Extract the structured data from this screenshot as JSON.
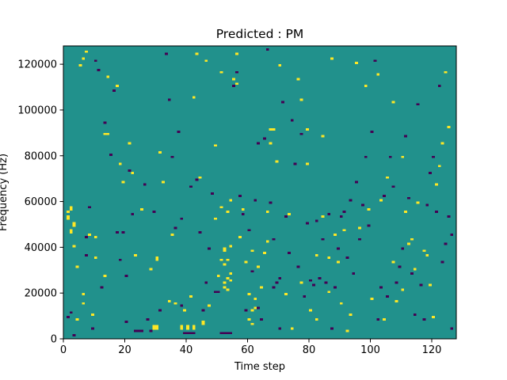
{
  "chart_data": {
    "type": "heatmap",
    "title": "Predicted : PM",
    "xlabel": "Time step",
    "ylabel": "Frequency (Hz)",
    "xlim": [
      0,
      128
    ],
    "ylim": [
      0,
      128000
    ],
    "x_ticks": [
      0,
      20,
      40,
      60,
      80,
      100,
      120
    ],
    "x_tick_labels": [
      "0",
      "20",
      "40",
      "60",
      "80",
      "100",
      "120"
    ],
    "y_ticks": [
      0,
      20000,
      40000,
      60000,
      80000,
      100000,
      120000
    ],
    "y_tick_labels": [
      "0",
      "20000",
      "40000",
      "60000",
      "80000",
      "100000",
      "120000"
    ],
    "grid": false,
    "legend": "none",
    "n_time_steps": 128,
    "n_freq_bins": 128,
    "colormap": "viridis",
    "background_value": 0,
    "value_range": [
      -1,
      1
    ],
    "colors": {
      "low": "#440154",
      "mid": "#21918c",
      "high": "#fde725"
    },
    "high_cells": [
      [
        1,
        53
      ],
      [
        1,
        52
      ],
      [
        1,
        55
      ],
      [
        2,
        57
      ],
      [
        2,
        56
      ],
      [
        2,
        46
      ],
      [
        2,
        47
      ],
      [
        3,
        50
      ],
      [
        3,
        49
      ],
      [
        3,
        40
      ],
      [
        4,
        31
      ],
      [
        4,
        8
      ],
      [
        5,
        119
      ],
      [
        6,
        122
      ],
      [
        6,
        19
      ],
      [
        6,
        15
      ],
      [
        7,
        125
      ],
      [
        8,
        45
      ],
      [
        9,
        10
      ],
      [
        10,
        44
      ],
      [
        10,
        35
      ],
      [
        13,
        89
      ],
      [
        13,
        27
      ],
      [
        14,
        114
      ],
      [
        14,
        89
      ],
      [
        17,
        110
      ],
      [
        18,
        76
      ],
      [
        19,
        68
      ],
      [
        21,
        85
      ],
      [
        22,
        72
      ],
      [
        23,
        36
      ],
      [
        25,
        56
      ],
      [
        28,
        30
      ],
      [
        29,
        5
      ],
      [
        29,
        4
      ],
      [
        30,
        5
      ],
      [
        30,
        4
      ],
      [
        30,
        34
      ],
      [
        30,
        35
      ],
      [
        31,
        81
      ],
      [
        32,
        68
      ],
      [
        34,
        16
      ],
      [
        35,
        45
      ],
      [
        36,
        15
      ],
      [
        38,
        5
      ],
      [
        38,
        4
      ],
      [
        39,
        12
      ],
      [
        40,
        5
      ],
      [
        40,
        4
      ],
      [
        41,
        18
      ],
      [
        42,
        5
      ],
      [
        42,
        4
      ],
      [
        42,
        105
      ],
      [
        43,
        124
      ],
      [
        44,
        70
      ],
      [
        45,
        6
      ],
      [
        45,
        7
      ],
      [
        46,
        121
      ],
      [
        47,
        14
      ],
      [
        49,
        84
      ],
      [
        49,
        52
      ],
      [
        50,
        27
      ],
      [
        51,
        34
      ],
      [
        51,
        57
      ],
      [
        51,
        116
      ],
      [
        52,
        38
      ],
      [
        52,
        39
      ],
      [
        52,
        32
      ],
      [
        52,
        24
      ],
      [
        52,
        22
      ],
      [
        53,
        55
      ],
      [
        53,
        34
      ],
      [
        53,
        26
      ],
      [
        53,
        21
      ],
      [
        54,
        60
      ],
      [
        54,
        40
      ],
      [
        54,
        28
      ],
      [
        54,
        25
      ],
      [
        55,
        113
      ],
      [
        56,
        111
      ],
      [
        56,
        124
      ],
      [
        57,
        44
      ],
      [
        58,
        56
      ],
      [
        59,
        33
      ],
      [
        60,
        19
      ],
      [
        60,
        8
      ],
      [
        61,
        38
      ],
      [
        61,
        6
      ],
      [
        61,
        12
      ],
      [
        62,
        17
      ],
      [
        62,
        13
      ],
      [
        63,
        31
      ],
      [
        64,
        22
      ],
      [
        65,
        37
      ],
      [
        66,
        42
      ],
      [
        66,
        55
      ],
      [
        67,
        85
      ],
      [
        67,
        91
      ],
      [
        68,
        91
      ],
      [
        69,
        77
      ],
      [
        70,
        119
      ],
      [
        72,
        19
      ],
      [
        73,
        54
      ],
      [
        74,
        4
      ],
      [
        76,
        113
      ],
      [
        77,
        24
      ],
      [
        77,
        104
      ],
      [
        79,
        76
      ],
      [
        79,
        91
      ],
      [
        80,
        12
      ],
      [
        82,
        8
      ],
      [
        82,
        36
      ],
      [
        84,
        88
      ],
      [
        84,
        53
      ],
      [
        86,
        35
      ],
      [
        86,
        20
      ],
      [
        87,
        122
      ],
      [
        88,
        45
      ],
      [
        89,
        33
      ],
      [
        90,
        15
      ],
      [
        91,
        47
      ],
      [
        92,
        3
      ],
      [
        93,
        10
      ],
      [
        95,
        120
      ],
      [
        96,
        48
      ],
      [
        98,
        110
      ],
      [
        99,
        56
      ],
      [
        100,
        17
      ],
      [
        102,
        115
      ],
      [
        103,
        60
      ],
      [
        104,
        8
      ],
      [
        105,
        70
      ],
      [
        107,
        103
      ],
      [
        107,
        33
      ],
      [
        108,
        16
      ],
      [
        110,
        79
      ],
      [
        110,
        21
      ],
      [
        111,
        55
      ],
      [
        112,
        41
      ],
      [
        113,
        43
      ],
      [
        114,
        30
      ],
      [
        115,
        59
      ],
      [
        117,
        38
      ],
      [
        118,
        36
      ],
      [
        119,
        23
      ],
      [
        120,
        9
      ],
      [
        121,
        67
      ],
      [
        122,
        75
      ],
      [
        123,
        85
      ],
      [
        124,
        116
      ],
      [
        125,
        92
      ]
    ],
    "low_cells": [
      [
        1,
        9
      ],
      [
        2,
        11
      ],
      [
        3,
        1
      ],
      [
        7,
        44
      ],
      [
        7,
        36
      ],
      [
        8,
        57
      ],
      [
        9,
        4
      ],
      [
        10,
        121
      ],
      [
        11,
        117
      ],
      [
        12,
        22
      ],
      [
        13,
        94
      ],
      [
        15,
        80
      ],
      [
        16,
        108
      ],
      [
        17,
        46
      ],
      [
        18,
        34
      ],
      [
        19,
        46
      ],
      [
        20,
        27
      ],
      [
        20,
        7
      ],
      [
        21,
        73
      ],
      [
        22,
        54
      ],
      [
        23,
        3
      ],
      [
        24,
        3
      ],
      [
        25,
        3
      ],
      [
        26,
        67
      ],
      [
        27,
        8
      ],
      [
        28,
        3
      ],
      [
        29,
        55
      ],
      [
        31,
        12
      ],
      [
        33,
        124
      ],
      [
        34,
        104
      ],
      [
        35,
        79
      ],
      [
        36,
        48
      ],
      [
        37,
        90
      ],
      [
        38,
        52
      ],
      [
        38,
        14
      ],
      [
        39,
        2
      ],
      [
        40,
        2
      ],
      [
        41,
        2
      ],
      [
        41,
        66
      ],
      [
        42,
        2
      ],
      [
        43,
        69
      ],
      [
        44,
        46
      ],
      [
        45,
        12
      ],
      [
        46,
        24
      ],
      [
        47,
        39
      ],
      [
        48,
        63
      ],
      [
        49,
        20
      ],
      [
        50,
        20
      ],
      [
        51,
        2
      ],
      [
        52,
        2
      ],
      [
        53,
        2
      ],
      [
        54,
        2
      ],
      [
        55,
        110
      ],
      [
        56,
        116
      ],
      [
        57,
        62
      ],
      [
        58,
        54
      ],
      [
        59,
        12
      ],
      [
        60,
        47
      ],
      [
        61,
        29
      ],
      [
        62,
        60
      ],
      [
        63,
        85
      ],
      [
        63,
        13
      ],
      [
        64,
        8
      ],
      [
        65,
        87
      ],
      [
        66,
        126
      ],
      [
        67,
        59
      ],
      [
        68,
        43
      ],
      [
        68,
        22
      ],
      [
        69,
        24
      ],
      [
        70,
        26
      ],
      [
        70,
        4
      ],
      [
        71,
        103
      ],
      [
        72,
        53
      ],
      [
        73,
        37
      ],
      [
        74,
        95
      ],
      [
        75,
        76
      ],
      [
        76,
        31
      ],
      [
        77,
        89
      ],
      [
        78,
        18
      ],
      [
        79,
        50
      ],
      [
        80,
        25
      ],
      [
        81,
        23
      ],
      [
        82,
        51
      ],
      [
        83,
        26
      ],
      [
        84,
        43
      ],
      [
        85,
        24
      ],
      [
        86,
        54
      ],
      [
        87,
        4
      ],
      [
        88,
        22
      ],
      [
        89,
        39
      ],
      [
        90,
        53
      ],
      [
        91,
        55
      ],
      [
        92,
        35
      ],
      [
        93,
        60
      ],
      [
        94,
        28
      ],
      [
        95,
        68
      ],
      [
        96,
        43
      ],
      [
        97,
        58
      ],
      [
        98,
        79
      ],
      [
        99,
        49
      ],
      [
        100,
        90
      ],
      [
        101,
        121
      ],
      [
        102,
        8
      ],
      [
        103,
        22
      ],
      [
        104,
        62
      ],
      [
        105,
        18
      ],
      [
        106,
        79
      ],
      [
        107,
        66
      ],
      [
        108,
        24
      ],
      [
        109,
        31
      ],
      [
        110,
        39
      ],
      [
        111,
        88
      ],
      [
        112,
        61
      ],
      [
        113,
        28
      ],
      [
        114,
        10
      ],
      [
        115,
        102
      ],
      [
        116,
        23
      ],
      [
        117,
        8
      ],
      [
        118,
        58
      ],
      [
        119,
        72
      ],
      [
        120,
        79
      ],
      [
        121,
        55
      ],
      [
        122,
        110
      ],
      [
        123,
        33
      ],
      [
        124,
        41
      ],
      [
        125,
        53
      ],
      [
        126,
        45
      ],
      [
        126,
        4
      ]
    ]
  }
}
